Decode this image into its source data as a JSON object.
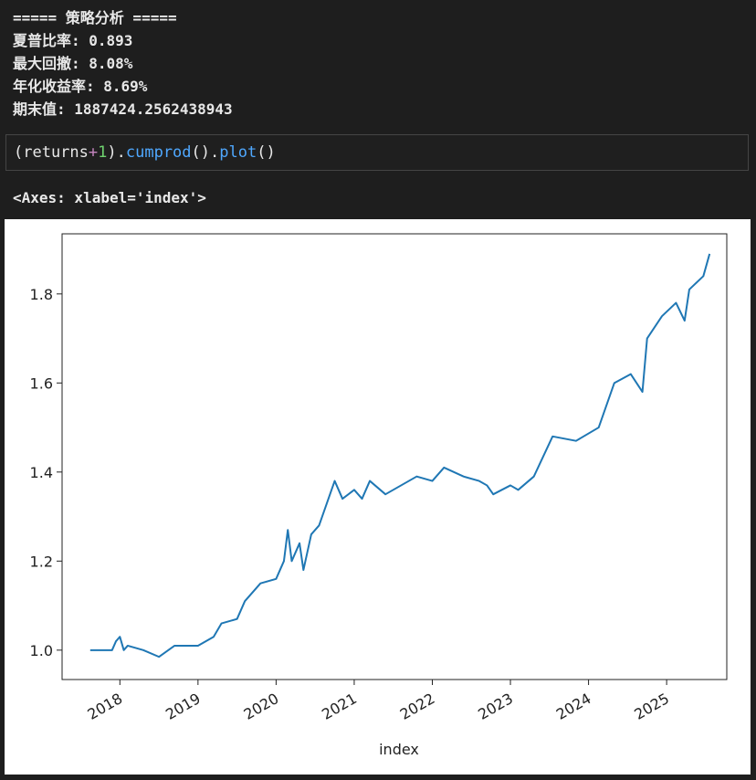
{
  "output": {
    "lines": [
      "===== 策略分析 =====",
      "夏普比率: 0.893",
      "最大回撤: 8.08%",
      "年化收益率: 8.69%",
      "期末值: 1887424.2562438943"
    ]
  },
  "code_cell": {
    "tokens": [
      "(returns",
      "+",
      "1",
      ").",
      "cumprod",
      "().",
      "plot",
      "()"
    ]
  },
  "result": "<Axes: xlabel='index'>",
  "chart_data": {
    "type": "line",
    "xlabel": "index",
    "x": [
      2017.62,
      2017.9,
      2017.95,
      2018.0,
      2018.05,
      2018.1,
      2018.3,
      2018.5,
      2018.7,
      2018.9,
      2019.0,
      2019.2,
      2019.3,
      2019.5,
      2019.6,
      2019.8,
      2020.0,
      2020.1,
      2020.15,
      2020.2,
      2020.3,
      2020.35,
      2020.45,
      2020.55,
      2020.65,
      2020.75,
      2020.85,
      2021.0,
      2021.1,
      2021.2,
      2021.4,
      2021.6,
      2021.8,
      2022.0,
      2022.15,
      2022.4,
      2022.6,
      2022.7,
      2022.78,
      2023.0,
      2023.1,
      2023.3,
      2023.54,
      2023.84,
      2024.13,
      2024.33,
      2024.54,
      2024.69,
      2024.75,
      2024.94,
      2025.12,
      2025.23,
      2025.29,
      2025.47,
      2025.55
    ],
    "series": [
      {
        "color": "#1f77b4",
        "values": [
          1.0,
          1.0,
          1.02,
          1.03,
          1.0,
          1.01,
          1.0,
          0.985,
          1.01,
          1.01,
          1.01,
          1.03,
          1.06,
          1.07,
          1.11,
          1.15,
          1.16,
          1.2,
          1.27,
          1.2,
          1.24,
          1.18,
          1.26,
          1.28,
          1.33,
          1.38,
          1.34,
          1.36,
          1.34,
          1.38,
          1.35,
          1.37,
          1.39,
          1.38,
          1.41,
          1.39,
          1.38,
          1.37,
          1.35,
          1.37,
          1.36,
          1.39,
          1.48,
          1.47,
          1.5,
          1.6,
          1.62,
          1.58,
          1.7,
          1.75,
          1.78,
          1.74,
          1.81,
          1.84,
          1.89
        ]
      }
    ],
    "xlim": [
      2017.26,
      2025.77
    ],
    "xticks": [
      2018,
      2019,
      2020,
      2021,
      2022,
      2023,
      2024,
      2025
    ],
    "ylim": [
      0.934,
      1.935
    ],
    "yticks": [
      {
        "value": 1,
        "label": "1.0"
      },
      1.2,
      1.4,
      1.6,
      1.8
    ]
  }
}
